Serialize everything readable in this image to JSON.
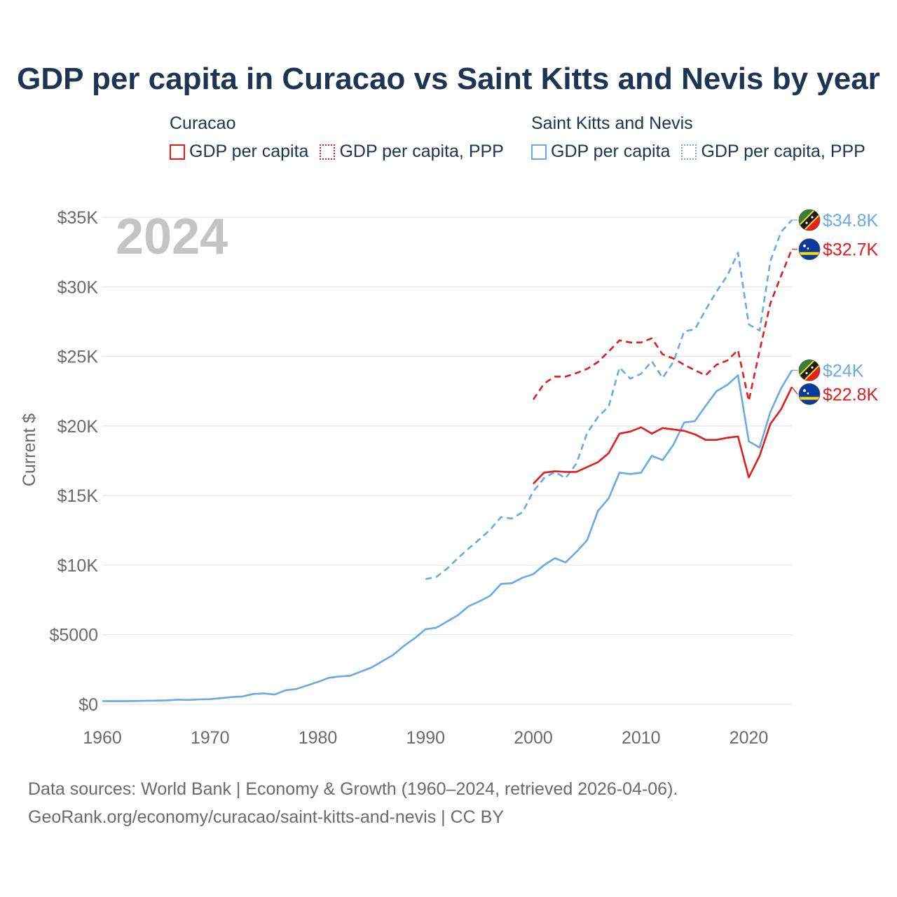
{
  "title": "GDP per capita in Curacao vs Saint Kitts and Nevis by year",
  "legend": {
    "groups": [
      {
        "country": "Curacao",
        "items": [
          "GDP per capita",
          "GDP per capita, PPP"
        ]
      },
      {
        "country": "Saint Kitts and Nevis",
        "items": [
          "GDP per capita",
          "GDP per capita, PPP"
        ]
      }
    ]
  },
  "footer": {
    "line1": "Data sources: World Bank | Economy & Growth (1960–2024, retrieved 2026-04-06).",
    "line2": "GeoRank.org/economy/curacao/saint-kitts-and-nevis | CC BY"
  },
  "colors": {
    "curacao": "#e11d1d",
    "skn": "#6aa9e6",
    "grid": "#e6e6e6",
    "title": "#1d3452"
  },
  "chart_data": {
    "type": "line",
    "title": "GDP per capita in Curacao vs Saint Kitts and Nevis by year",
    "xlabel": "",
    "ylabel": "Current $",
    "year_label": "2024",
    "xlim": [
      1960,
      2024
    ],
    "ylim": [
      0,
      35000
    ],
    "x_ticks": [
      1960,
      1970,
      1980,
      1990,
      2000,
      2010,
      2020
    ],
    "x_tick_labels": [
      "1960",
      "1970",
      "1980",
      "1990",
      "2000",
      "2010",
      "2020"
    ],
    "y_ticks": [
      0,
      5000,
      10000,
      15000,
      20000,
      25000,
      30000,
      35000
    ],
    "y_tick_labels": [
      "$0",
      "$5000",
      "$10K",
      "$15K",
      "$20K",
      "$25K",
      "$30K",
      "$35K"
    ],
    "series": [
      {
        "name": "Saint Kitts and Nevis — GDP per capita",
        "country": "skn",
        "style": "solid",
        "end_label": "$24K",
        "x": [
          1960,
          1961,
          1962,
          1963,
          1964,
          1965,
          1966,
          1967,
          1968,
          1969,
          1970,
          1971,
          1972,
          1973,
          1974,
          1975,
          1976,
          1977,
          1978,
          1979,
          1980,
          1981,
          1982,
          1983,
          1984,
          1985,
          1986,
          1987,
          1988,
          1989,
          1990,
          1991,
          1992,
          1993,
          1994,
          1995,
          1996,
          1997,
          1998,
          1999,
          2000,
          2001,
          2002,
          2003,
          2004,
          2005,
          2006,
          2007,
          2008,
          2009,
          2010,
          2011,
          2012,
          2013,
          2014,
          2015,
          2016,
          2017,
          2018,
          2019,
          2020,
          2021,
          2022,
          2023,
          2024
        ],
        "values": [
          230,
          230,
          230,
          235,
          250,
          260,
          280,
          330,
          310,
          350,
          370,
          440,
          520,
          560,
          740,
          780,
          700,
          1000,
          1100,
          1350,
          1600,
          1900,
          2000,
          2050,
          2350,
          2650,
          3100,
          3550,
          4200,
          4750,
          5400,
          5500,
          5950,
          6400,
          7050,
          7400,
          7800,
          8650,
          8700,
          9100,
          9350,
          10000,
          10500,
          10200,
          10950,
          11800,
          13900,
          14800,
          16650,
          16550,
          16650,
          17850,
          17550,
          18650,
          20250,
          20350,
          21450,
          22500,
          22950,
          23650,
          18900,
          18450,
          21000,
          22700,
          24000
        ]
      },
      {
        "name": "Saint Kitts and Nevis — GDP per capita, PPP",
        "country": "skn",
        "style": "dashed",
        "end_label": "$34.8K",
        "x": [
          1990,
          1991,
          1992,
          1993,
          1994,
          1995,
          1996,
          1997,
          1998,
          1999,
          2000,
          2001,
          2002,
          2003,
          2004,
          2005,
          2006,
          2007,
          2008,
          2009,
          2010,
          2011,
          2012,
          2013,
          2014,
          2015,
          2016,
          2017,
          2018,
          2019,
          2020,
          2021,
          2022,
          2023,
          2024
        ],
        "values": [
          9000,
          9150,
          9750,
          10500,
          11200,
          11850,
          12550,
          13450,
          13350,
          13800,
          15300,
          16250,
          16700,
          16250,
          17300,
          19500,
          20650,
          21400,
          24200,
          23400,
          23750,
          24650,
          23450,
          24600,
          26800,
          26950,
          28350,
          29650,
          30800,
          32450,
          27300,
          26850,
          31850,
          33950,
          34800
        ]
      },
      {
        "name": "Curacao — GDP per capita",
        "country": "curacao",
        "style": "solid",
        "end_label": "$22.8K",
        "x": [
          2000,
          2001,
          2002,
          2003,
          2004,
          2005,
          2006,
          2007,
          2008,
          2009,
          2010,
          2011,
          2012,
          2013,
          2014,
          2015,
          2016,
          2017,
          2018,
          2019,
          2020,
          2021,
          2022,
          2023,
          2024
        ],
        "values": [
          15850,
          16650,
          16750,
          16700,
          16700,
          17050,
          17400,
          18050,
          19450,
          19600,
          19900,
          19450,
          19850,
          19750,
          19650,
          19400,
          19000,
          19000,
          19150,
          19250,
          16300,
          17850,
          20150,
          21200,
          22800
        ]
      },
      {
        "name": "Curacao — GDP per capita, PPP",
        "country": "curacao",
        "style": "dashed",
        "end_label": "$32.7K",
        "x": [
          2000,
          2001,
          2002,
          2003,
          2004,
          2005,
          2006,
          2007,
          2008,
          2009,
          2010,
          2011,
          2012,
          2013,
          2014,
          2015,
          2016,
          2017,
          2018,
          2019,
          2020,
          2021,
          2022,
          2023,
          2024
        ],
        "values": [
          21900,
          23050,
          23550,
          23550,
          23800,
          24100,
          24600,
          25350,
          26150,
          26000,
          26000,
          26300,
          25150,
          24850,
          24400,
          24000,
          23650,
          24400,
          24700,
          25450,
          21800,
          25400,
          28800,
          30800,
          32700
        ]
      }
    ]
  }
}
